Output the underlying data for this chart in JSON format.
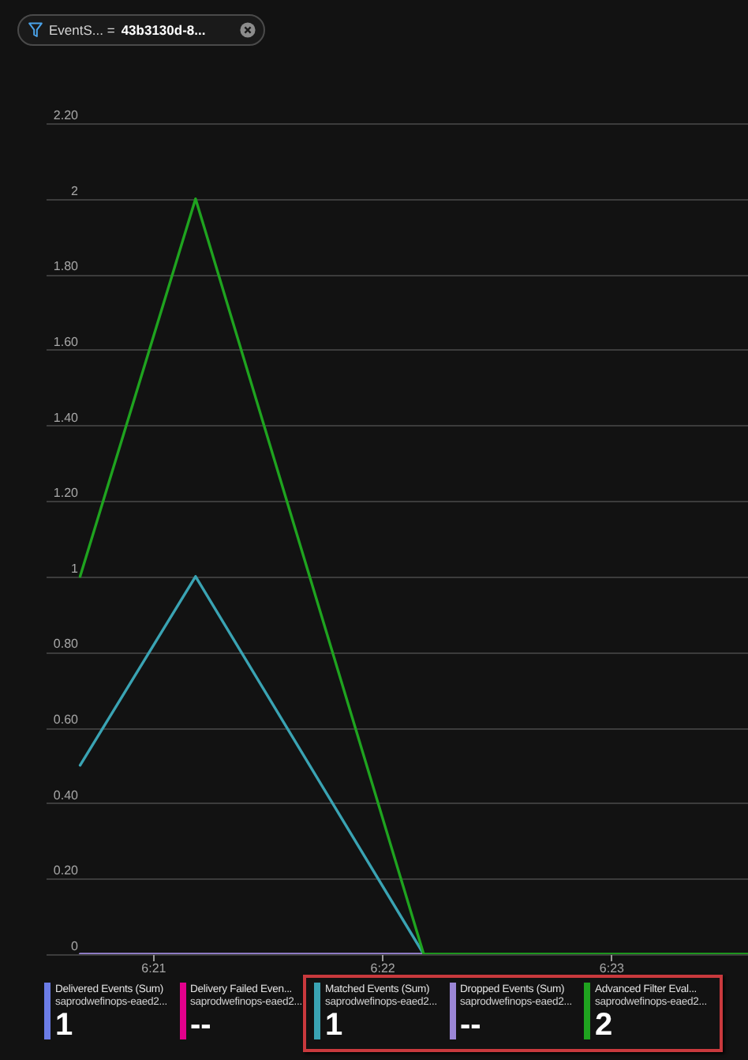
{
  "chart_data": {
    "type": "line",
    "series": [
      {
        "name": "Delivered Events (Sum)",
        "color": "#6b7ce6",
        "values": [
          null
        ]
      },
      {
        "name": "Delivery Failed Even...",
        "color": "#e3008c",
        "values": [
          null
        ]
      },
      {
        "name": "Matched Events (Sum)",
        "color": "#3aa3b3",
        "x": [
          6.3447,
          6.3531,
          6.3697
        ],
        "values": [
          0.5,
          1,
          0
        ]
      },
      {
        "name": "Dropped Events (Sum)",
        "color": "#9b86d6",
        "x": [
          6.3447,
          6.3697
        ],
        "values": [
          0,
          0
        ]
      },
      {
        "name": "Advanced Filter Eval...",
        "color": "#1fa31f",
        "x": [
          6.3447,
          6.3531,
          6.3697,
          6.3933
        ],
        "values": [
          1,
          2,
          0,
          0
        ]
      }
    ],
    "xlim": [
      6.3422,
      6.3933
    ],
    "xticks": [
      {
        "value": 6.35,
        "label": "6:21"
      },
      {
        "value": 6.366667,
        "label": "6:22"
      },
      {
        "value": 6.383333,
        "label": "6:23"
      }
    ],
    "ylim": [
      0,
      2.2
    ],
    "yticks": [
      0,
      {
        "value": 0.2,
        "label": "0.20"
      },
      {
        "value": 0.4,
        "label": "0.40"
      },
      {
        "value": 0.6,
        "label": "0.60"
      },
      {
        "value": 0.8,
        "label": "0.80"
      },
      1,
      {
        "value": 1.2,
        "label": "1.20"
      },
      {
        "value": 1.4,
        "label": "1.40"
      },
      {
        "value": 1.6,
        "label": "1.60"
      },
      {
        "value": 1.8,
        "label": "1.80"
      },
      2,
      {
        "value": 2.2,
        "label": "2.20"
      }
    ],
    "grid": "y",
    "legend": "bottom",
    "annotations": [
      "EventS... =",
      "43b3130d-8...",
      "saprodwefinops-eaed2...",
      "1",
      "saprodwefinops-eaed2...",
      "--",
      "saprodwefinops-eaed2...",
      "1",
      "saprodwefinops-eaed2...",
      "--",
      "saprodwefinops-eaed2...",
      "2"
    ]
  }
}
